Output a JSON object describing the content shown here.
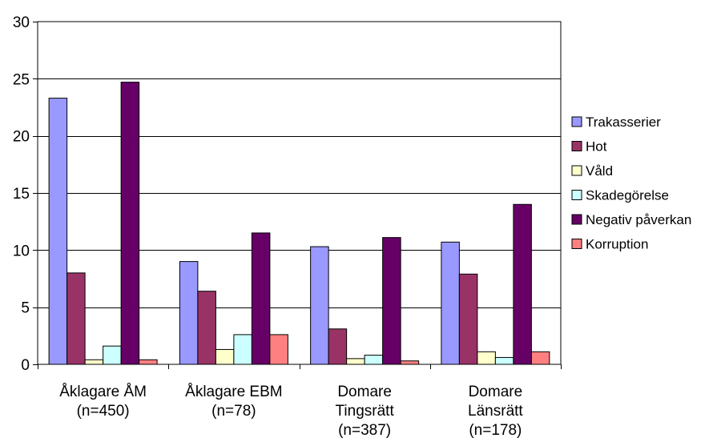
{
  "chart_data": {
    "type": "bar",
    "categories": [
      [
        "Åklagare ÅM",
        "(n=450)"
      ],
      [
        "Åklagare EBM",
        "(n=78)"
      ],
      [
        "Domare",
        "Tingsrätt",
        "(n=387)"
      ],
      [
        "Domare",
        "Länsrätt",
        "(n=178)"
      ]
    ],
    "series": [
      {
        "name": "Trakasserier",
        "color": "#9999ff",
        "values": [
          23.3,
          9.0,
          10.3,
          10.7
        ]
      },
      {
        "name": "Hot",
        "color": "#993366",
        "values": [
          8.0,
          6.4,
          3.1,
          7.9
        ]
      },
      {
        "name": "Våld",
        "color": "#ffffcc",
        "values": [
          0.4,
          1.3,
          0.5,
          1.1
        ]
      },
      {
        "name": "Skadegörelse",
        "color": "#ccffff",
        "values": [
          1.6,
          2.6,
          0.8,
          0.6
        ]
      },
      {
        "name": "Negativ påverkan",
        "color": "#660066",
        "values": [
          24.7,
          11.5,
          11.1,
          14.0
        ]
      },
      {
        "name": "Korruption",
        "color": "#ff8080",
        "values": [
          0.4,
          2.6,
          0.3,
          1.1
        ]
      }
    ],
    "ylim": [
      0,
      30
    ],
    "yticks": [
      0,
      5,
      10,
      15,
      20,
      25,
      30
    ],
    "grid": true,
    "legend_position": "right"
  }
}
